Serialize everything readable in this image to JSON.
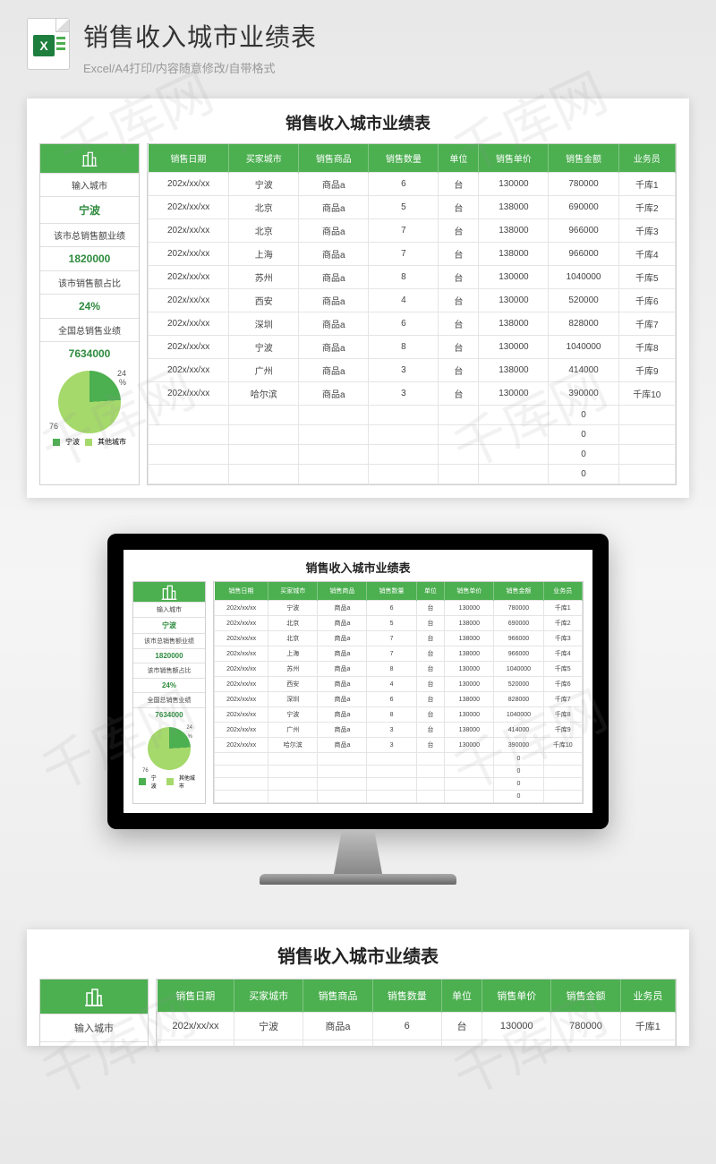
{
  "header": {
    "title": "销售收入城市业绩表",
    "subtitle": "Excel/A4打印/内容随意修改/自带格式",
    "icon_letter": "X"
  },
  "sheet": {
    "title": "销售收入城市业绩表",
    "side": {
      "input_city_label": "输入城市",
      "input_city_value": "宁波",
      "city_total_label": "该市总销售额业绩",
      "city_total_value": "1820000",
      "city_pct_label": "该市销售额占比",
      "city_pct_value": "24%",
      "national_label": "全国总销售业绩",
      "national_value": "7634000"
    },
    "pie": {
      "slice1_pct": 24,
      "slice2_pct": 76,
      "slice1_color": "#4caf50",
      "slice2_color": "#a5d96b",
      "label1": "24",
      "label_pct": "%",
      "label2": "76",
      "legend1": "宁波",
      "legend2": "其他城市"
    },
    "columns": [
      "销售日期",
      "买家城市",
      "销售商品",
      "销售数量",
      "单位",
      "销售单价",
      "销售金额",
      "业务员"
    ],
    "rows": [
      [
        "202x/xx/xx",
        "宁波",
        "商品a",
        "6",
        "台",
        "130000",
        "780000",
        "千库1"
      ],
      [
        "202x/xx/xx",
        "北京",
        "商品a",
        "5",
        "台",
        "138000",
        "690000",
        "千库2"
      ],
      [
        "202x/xx/xx",
        "北京",
        "商品a",
        "7",
        "台",
        "138000",
        "966000",
        "千库3"
      ],
      [
        "202x/xx/xx",
        "上海",
        "商品a",
        "7",
        "台",
        "138000",
        "966000",
        "千库4"
      ],
      [
        "202x/xx/xx",
        "苏州",
        "商品a",
        "8",
        "台",
        "130000",
        "1040000",
        "千库5"
      ],
      [
        "202x/xx/xx",
        "西安",
        "商品a",
        "4",
        "台",
        "130000",
        "520000",
        "千库6"
      ],
      [
        "202x/xx/xx",
        "深圳",
        "商品a",
        "6",
        "台",
        "138000",
        "828000",
        "千库7"
      ],
      [
        "202x/xx/xx",
        "宁波",
        "商品a",
        "8",
        "台",
        "130000",
        "1040000",
        "千库8"
      ],
      [
        "202x/xx/xx",
        "广州",
        "商品a",
        "3",
        "台",
        "138000",
        "414000",
        "千库9"
      ],
      [
        "202x/xx/xx",
        "哈尔滨",
        "商品a",
        "3",
        "台",
        "130000",
        "390000",
        "千库10"
      ],
      [
        "",
        "",
        "",
        "",
        "",
        "",
        "0",
        ""
      ],
      [
        "",
        "",
        "",
        "",
        "",
        "",
        "0",
        ""
      ],
      [
        "",
        "",
        "",
        "",
        "",
        "",
        "0",
        ""
      ],
      [
        "",
        "",
        "",
        "",
        "",
        "",
        "0",
        ""
      ]
    ],
    "rows_short": [
      [
        "202x/xx/xx",
        "宁波",
        "商品a",
        "6",
        "台",
        "130000",
        "780000",
        "千库1"
      ],
      [
        "202x/xx/xx",
        "北京",
        "商品a",
        "5",
        "台",
        "138000",
        "690000",
        "千库2"
      ]
    ]
  },
  "colors": {
    "brand_green": "#4caf50",
    "light_green": "#a5d96b",
    "text_green": "#2e8b3e"
  },
  "watermark_text": "千库网"
}
